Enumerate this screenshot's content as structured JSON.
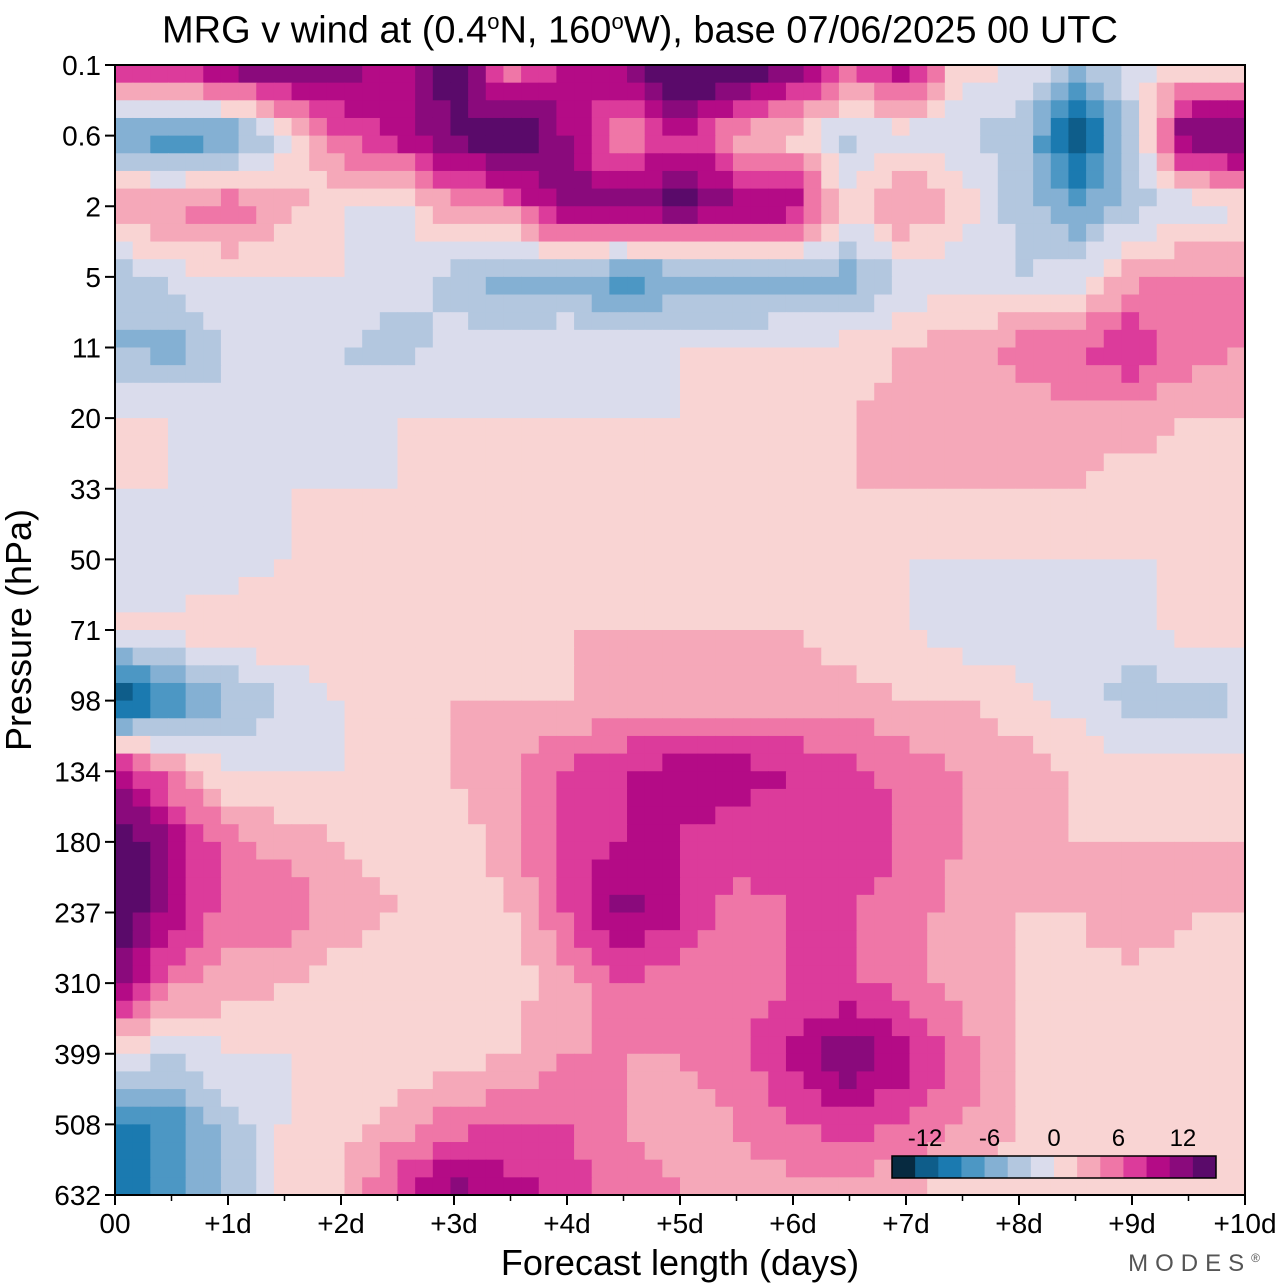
{
  "title": {
    "prefix": "MRG v wind at (0.4",
    "deg1": "o",
    "mid": "N, 160",
    "deg2": "o",
    "suffix": "W),  base 07/06/2025  00 UTC"
  },
  "brand": "MODES",
  "brand_mark": "®",
  "colors": {
    "neg": [
      "#072a40",
      "#0e5d8a",
      "#1b7ab0",
      "#4c97c4",
      "#84b0d3",
      "#b3c7df",
      "#dadcec"
    ],
    "pos": [
      "#f9d4d3",
      "#f5a8b9",
      "#ef76a7",
      "#dc3b9b",
      "#b40b86",
      "#8a0a7c",
      "#5a0a6a"
    ]
  },
  "chart_data": {
    "type": "heatmap",
    "xlabel": "Forecast length (days)",
    "ylabel": "Pressure (hPa)",
    "xticks": [
      "00",
      "+1d",
      "+2d",
      "+3d",
      "+4d",
      "+5d",
      "+6d",
      "+7d",
      "+8d",
      "+9d",
      "+10d"
    ],
    "x": [
      0,
      0.5,
      1,
      1.5,
      2,
      2.5,
      3,
      3.5,
      4,
      4.5,
      5,
      5.5,
      6,
      6.5,
      7,
      7.5,
      8,
      8.5,
      9,
      9.5,
      10
    ],
    "yticks": [
      "0.1",
      "0.6",
      "2",
      "5",
      "11",
      "20",
      "33",
      "50",
      "71",
      "98",
      "134",
      "180",
      "237",
      "310",
      "399",
      "508",
      "632"
    ],
    "y": [
      0.1,
      0.6,
      2,
      5,
      11,
      20,
      33,
      50,
      71,
      98,
      134,
      180,
      237,
      310,
      399,
      508,
      632
    ],
    "z": [
      [
        8,
        9,
        12,
        13,
        11,
        9,
        14,
        4,
        9,
        11,
        17,
        15,
        12,
        7,
        10,
        1,
        0,
        -3,
        -1,
        0,
        0
      ],
      [
        -6,
        -8,
        -7,
        -1,
        6,
        9,
        12,
        15,
        10,
        3,
        8,
        3,
        1,
        -3,
        -1,
        -2,
        -3,
        -12,
        -3,
        13,
        13
      ],
      [
        5,
        4,
        6,
        3,
        0,
        -1,
        4,
        5,
        12,
        11,
        13,
        11,
        10,
        1,
        5,
        1,
        -3,
        -6,
        -3,
        -2,
        0
      ],
      [
        -4,
        -1,
        0,
        0,
        0,
        -1,
        -3,
        -5,
        -5,
        -7,
        -6,
        -6,
        -5,
        -5,
        -2,
        -1,
        -2,
        -1,
        3,
        5,
        4
      ],
      [
        -4,
        -5,
        -2,
        0,
        -2,
        -3,
        -1,
        -1,
        0,
        -1,
        0,
        0,
        0,
        1,
        2,
        3,
        5,
        6,
        8,
        5,
        4
      ],
      [
        0,
        0,
        -1,
        -2,
        -1,
        0,
        0,
        0,
        0,
        0,
        0,
        1,
        2,
        2,
        3,
        3,
        3,
        3,
        3,
        2,
        2
      ],
      [
        0,
        0,
        0,
        0,
        0,
        0,
        1,
        1,
        2,
        2,
        2,
        1,
        1,
        2,
        2,
        2,
        2,
        2,
        1,
        1,
        1
      ],
      [
        0,
        -2,
        -1,
        0,
        0,
        0,
        0,
        0,
        0,
        1,
        1,
        1,
        0,
        0,
        0,
        0,
        0,
        0,
        0,
        0,
        0
      ],
      [
        0,
        1,
        1,
        2,
        2,
        1,
        1,
        1,
        2,
        2,
        2,
        2,
        2,
        1,
        0,
        -1,
        -2,
        -2,
        -1,
        1,
        1
      ],
      [
        -13,
        -8,
        -4,
        -2,
        0,
        1,
        2,
        2,
        2,
        3,
        3,
        3,
        3,
        3,
        2,
        2,
        1,
        -1,
        -3,
        -3,
        -2
      ],
      [
        10,
        4,
        0,
        0,
        0,
        1,
        2,
        4,
        6,
        8,
        9,
        9,
        8,
        7,
        5,
        4,
        3,
        2,
        1,
        1,
        1
      ],
      [
        14,
        10,
        5,
        3,
        2,
        1,
        1,
        3,
        7,
        8,
        8,
        7,
        7,
        7,
        6,
        4,
        3,
        2,
        2,
        2,
        2
      ],
      [
        15,
        9,
        5,
        6,
        3,
        2,
        1,
        2,
        6,
        11,
        8,
        5,
        6,
        6,
        5,
        3,
        2,
        2,
        4,
        2,
        2
      ],
      [
        11,
        5,
        3,
        2,
        1,
        0,
        1,
        1,
        3,
        6,
        5,
        5,
        6,
        6,
        5,
        3,
        2,
        1,
        1,
        1,
        0
      ],
      [
        0,
        -2,
        0,
        0,
        0,
        0,
        1,
        2,
        4,
        4,
        4,
        5,
        9,
        12,
        9,
        5,
        2,
        1,
        0,
        0,
        0
      ],
      [
        -9,
        -7,
        -3,
        0,
        1,
        3,
        5,
        6,
        6,
        4,
        3,
        4,
        6,
        7,
        6,
        4,
        2,
        1,
        0,
        0,
        0
      ],
      [
        -10,
        -7,
        -4,
        1,
        2,
        7,
        11,
        9,
        7,
        5,
        4,
        3,
        3,
        3,
        2,
        1,
        0,
        0,
        0,
        0,
        0
      ]
    ],
    "levels": [
      -14,
      -12,
      -10,
      -8,
      -6,
      -4,
      -2,
      0,
      2,
      4,
      6,
      8,
      10,
      12,
      14
    ],
    "colorbar": {
      "ticks": [
        -12,
        -6,
        0,
        6,
        12
      ],
      "tick_labels": [
        "-12",
        "-6",
        "0",
        "6",
        "12"
      ]
    },
    "xlim": [
      0,
      10
    ],
    "grid": false
  }
}
